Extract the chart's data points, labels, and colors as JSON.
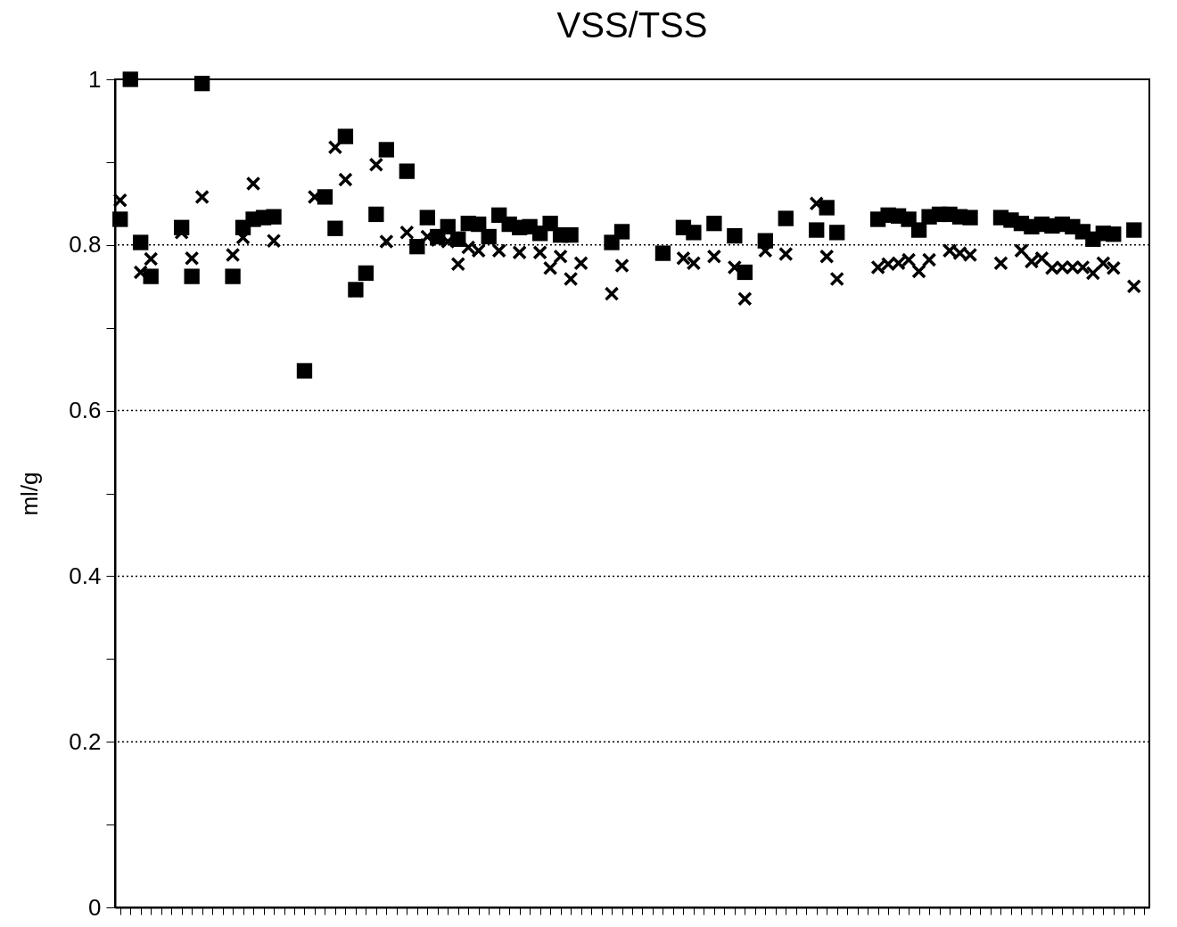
{
  "chart_data": {
    "type": "scatter",
    "title": "VSS/TSS",
    "ylabel": "ml/g",
    "categories": [
      null,
      null,
      null,
      null,
      null,
      null,
      null,
      null,
      null,
      null,
      null,
      null,
      null,
      null,
      null,
      null,
      null,
      null,
      null,
      null,
      null,
      null,
      null,
      null,
      null,
      null,
      null,
      null,
      null,
      null,
      null,
      null,
      null,
      null,
      null,
      null,
      null,
      null,
      null,
      null,
      null,
      null,
      null,
      null,
      null,
      null,
      null,
      null,
      null,
      null,
      null,
      null,
      null,
      null,
      null,
      null,
      null,
      null,
      null,
      null,
      null,
      null,
      null,
      null,
      null,
      null,
      null,
      null,
      null,
      null,
      null,
      null,
      null,
      null,
      null,
      null,
      null,
      null,
      null,
      null,
      null,
      null,
      null,
      null,
      null,
      null,
      null,
      null,
      null,
      null,
      null,
      null,
      null,
      null,
      null,
      null,
      null,
      null,
      null,
      null,
      null
    ],
    "series": [
      {
        "color": "#000000",
        "marker": "square",
        "values": [
          0.831,
          1.0,
          0.803,
          0.762,
          null,
          null,
          0.821,
          0.762,
          0.995,
          null,
          null,
          0.762,
          0.821,
          0.831,
          0.833,
          0.834,
          null,
          null,
          0.648,
          null,
          0.858,
          0.82,
          0.931,
          0.746,
          0.766,
          0.837,
          0.915,
          null,
          0.889,
          0.798,
          0.833,
          0.81,
          0.822,
          0.807,
          0.826,
          0.825,
          0.81,
          0.836,
          0.825,
          0.821,
          0.822,
          0.814,
          0.826,
          0.812,
          0.812,
          null,
          null,
          null,
          0.803,
          0.816,
          null,
          null,
          null,
          0.79,
          null,
          0.821,
          0.815,
          null,
          0.826,
          null,
          0.811,
          0.767,
          null,
          0.805,
          null,
          0.832,
          null,
          null,
          0.818,
          0.845,
          0.815,
          null,
          null,
          null,
          0.831,
          0.836,
          0.835,
          0.831,
          0.818,
          0.834,
          0.837,
          0.837,
          0.834,
          0.833,
          null,
          null,
          0.833,
          0.83,
          0.826,
          0.822,
          0.825,
          0.823,
          0.825,
          0.822,
          0.816,
          0.807,
          0.814,
          0.813,
          null,
          0.818,
          null
        ]
      },
      {
        "color": "#000000",
        "marker": "cross",
        "values": [
          0.854,
          null,
          0.767,
          0.783,
          null,
          null,
          0.815,
          0.784,
          0.858,
          null,
          null,
          0.788,
          0.809,
          0.874,
          null,
          0.805,
          null,
          null,
          null,
          0.858,
          null,
          0.918,
          0.879,
          0.745,
          null,
          0.897,
          0.804,
          null,
          0.815,
          0.8,
          0.81,
          0.806,
          0.804,
          0.777,
          0.797,
          0.793,
          null,
          0.793,
          null,
          0.791,
          null,
          0.791,
          0.772,
          0.786,
          0.759,
          0.778,
          null,
          null,
          0.741,
          0.775,
          null,
          null,
          null,
          null,
          null,
          0.784,
          0.778,
          null,
          0.786,
          null,
          0.773,
          0.735,
          null,
          0.793,
          null,
          0.789,
          null,
          null,
          0.85,
          0.786,
          0.759,
          null,
          null,
          null,
          0.773,
          0.777,
          0.778,
          0.782,
          0.768,
          0.782,
          null,
          0.793,
          0.79,
          0.788,
          null,
          null,
          0.778,
          null,
          0.793,
          0.78,
          0.784,
          0.772,
          0.773,
          0.773,
          0.773,
          0.766,
          0.778,
          0.772,
          null,
          0.75,
          null
        ]
      }
    ],
    "ylim": [
      0,
      1
    ],
    "yticks": [
      0,
      {
        "value": 0.1,
        "label": null
      },
      0.2,
      {
        "value": 0.3,
        "label": null
      },
      0.4,
      {
        "value": 0.5,
        "label": null
      },
      0.6,
      {
        "value": 0.7,
        "label": null
      },
      0.8,
      {
        "value": 0.9,
        "label": null
      },
      1
    ],
    "grid": "y",
    "tick_labels": "y"
  }
}
